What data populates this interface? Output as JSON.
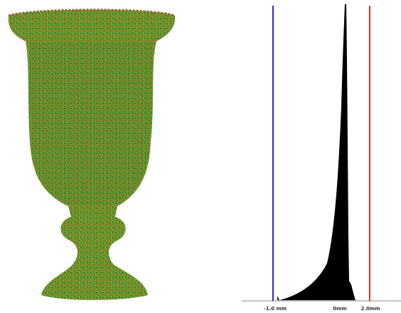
{
  "histogram": {
    "labels": [
      "-1.0 mm",
      "0mm",
      "2.0mm"
    ]
  }
}
